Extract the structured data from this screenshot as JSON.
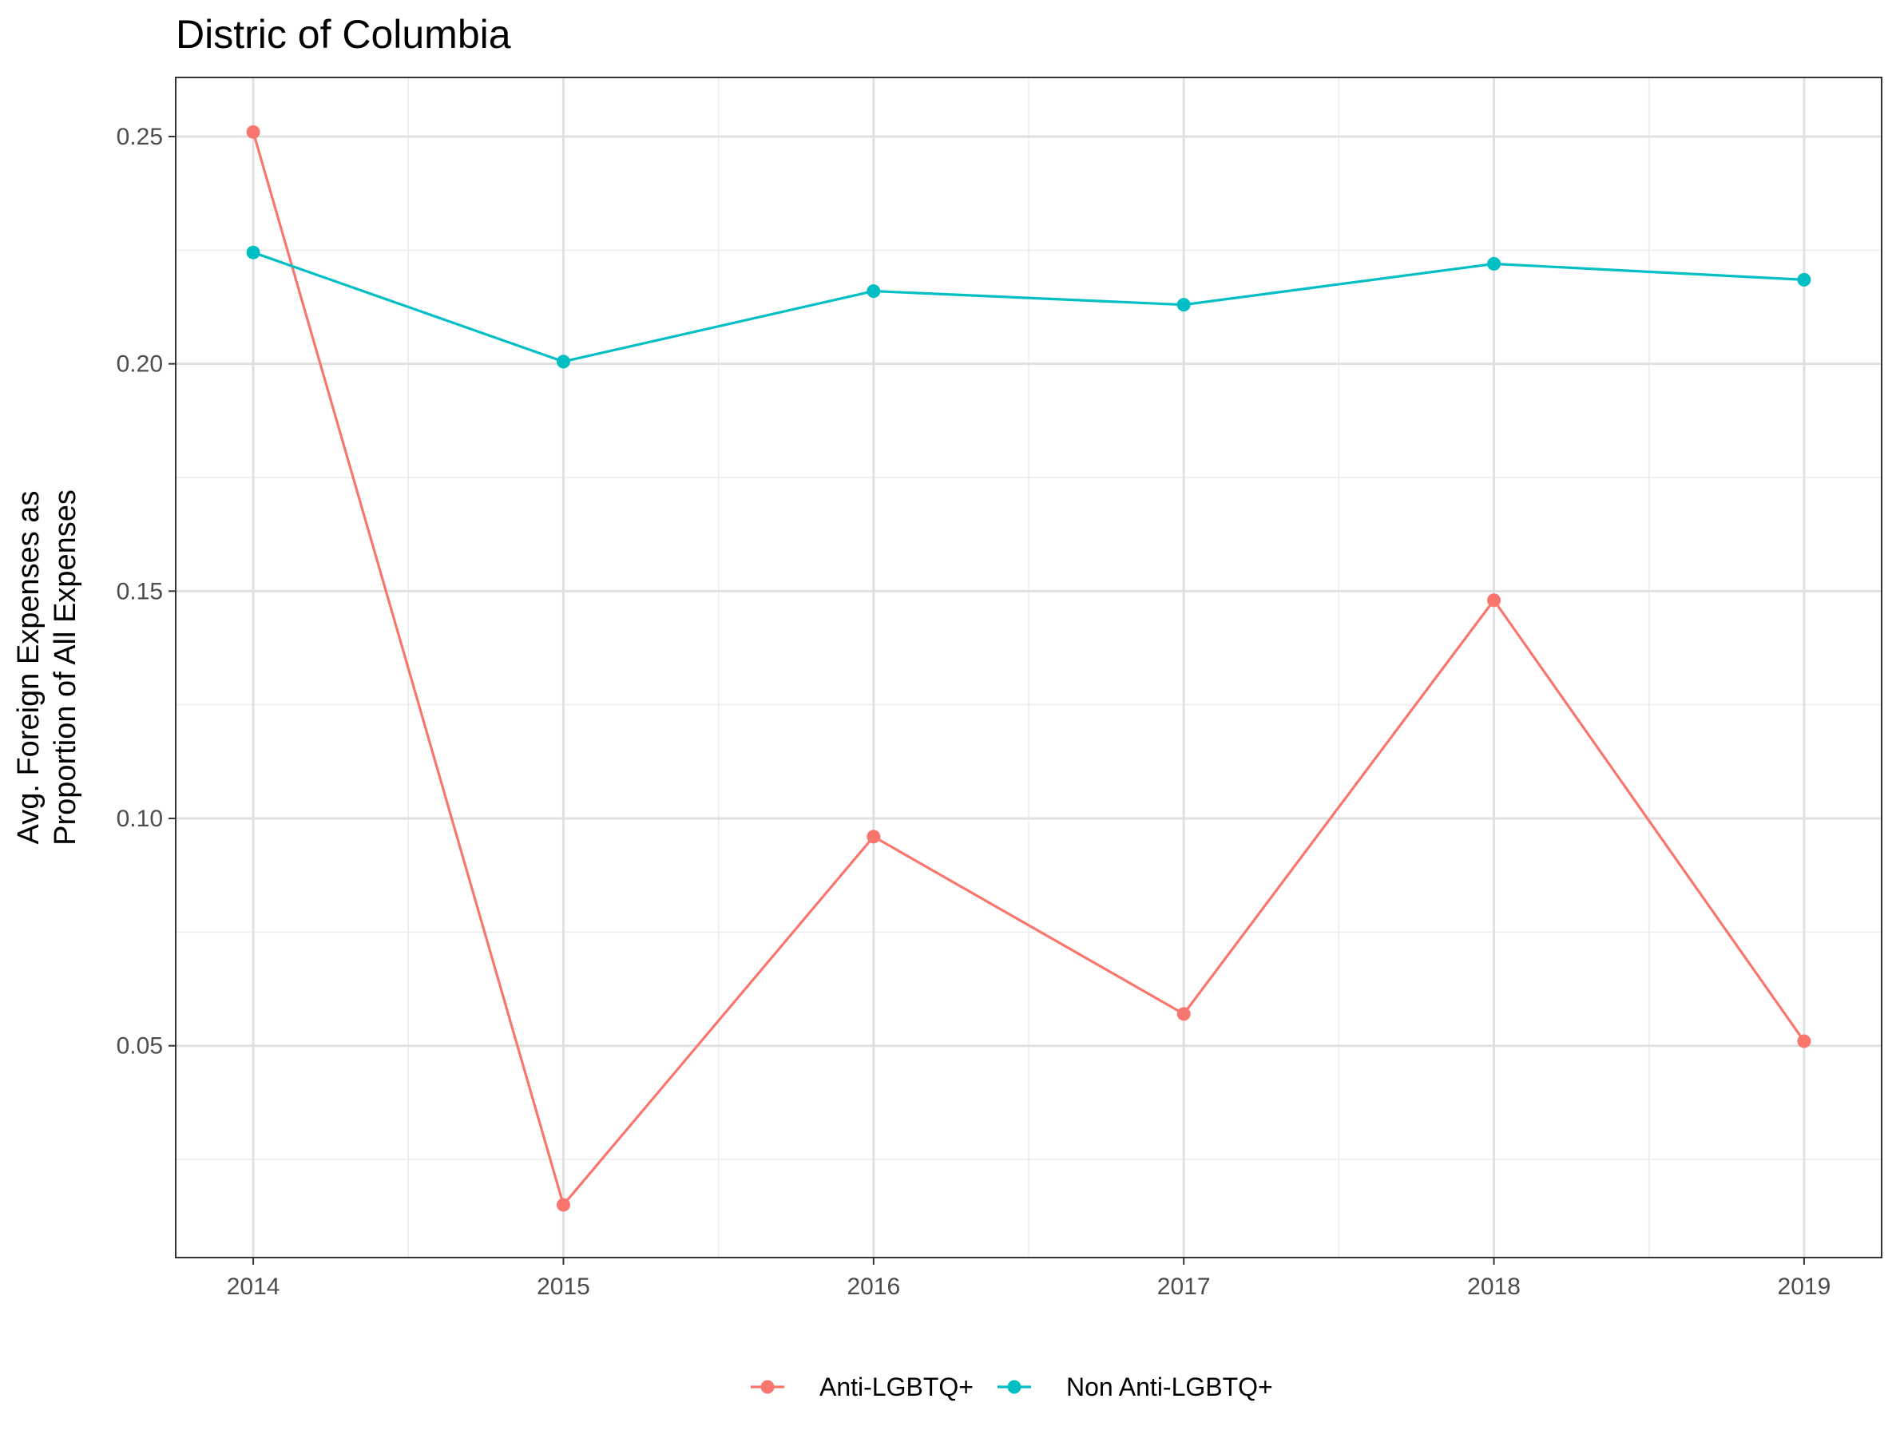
{
  "chart_data": {
    "type": "line",
    "title": "Distric of Columbia",
    "xlabel": "",
    "ylabel_lines": [
      "Avg. Foreign Expenses as",
      "Proportion of All Expenses"
    ],
    "x": [
      2014,
      2015,
      2016,
      2017,
      2018,
      2019
    ],
    "x_tick_labels": [
      "2014",
      "2015",
      "2016",
      "2017",
      "2018",
      "2019"
    ],
    "xlim": [
      2013.75,
      2019.25
    ],
    "y_ticks": [
      0.05,
      0.1,
      0.15,
      0.2,
      0.25
    ],
    "y_tick_labels": [
      "0.05",
      "0.10",
      "0.15",
      "0.20",
      "0.25"
    ],
    "ylim": [
      0.0034,
      0.263
    ],
    "grid": true,
    "legend_position": "bottom",
    "series": [
      {
        "name": "Anti-LGBTQ+",
        "color": "#F8766D",
        "values": [
          0.251,
          0.015,
          0.096,
          0.057,
          0.148,
          0.051
        ]
      },
      {
        "name": "Non Anti-LGBTQ+",
        "color": "#00BFC4",
        "values": [
          0.2245,
          0.2005,
          0.216,
          0.213,
          0.222,
          0.2185
        ]
      }
    ]
  }
}
